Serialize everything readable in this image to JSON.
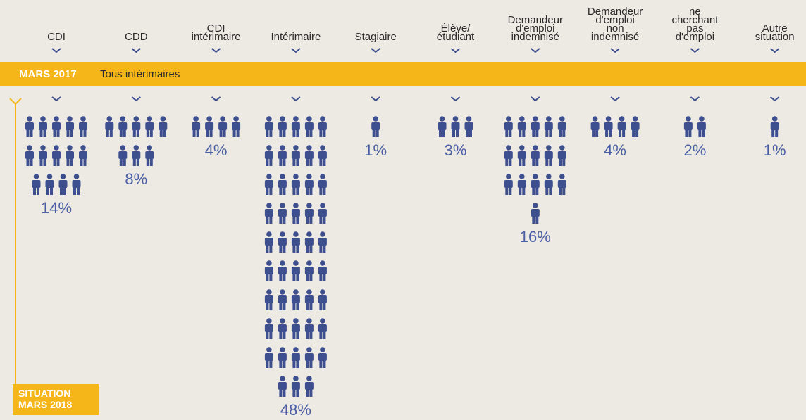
{
  "chart_data": {
    "type": "pictogram",
    "categories": [
      "CDI",
      "CDD",
      "CDI\nintérimaire",
      "Intérimaire",
      "Stagiaire",
      "Élève/\nétudiant",
      "Demandeur\nd'emploi\nindemnisé",
      "Demandeur\nd'emploi\nnon\nindemnisé",
      "ne\ncherchant\npas\nd'emploi",
      "Autre\nsituation"
    ],
    "values": [
      14,
      8,
      4,
      48,
      1,
      3,
      16,
      4,
      2,
      1
    ],
    "value_labels": [
      "14%",
      "8%",
      "4%",
      "48%",
      "1%",
      "3%",
      "16%",
      "4%",
      "2%",
      "1%"
    ],
    "color": "#3d4f8f",
    "banner": {
      "date": "MARS 2017",
      "label": "Tous intérimaires"
    },
    "axis_label": [
      "SITUATION",
      "MARS 2018"
    ]
  }
}
